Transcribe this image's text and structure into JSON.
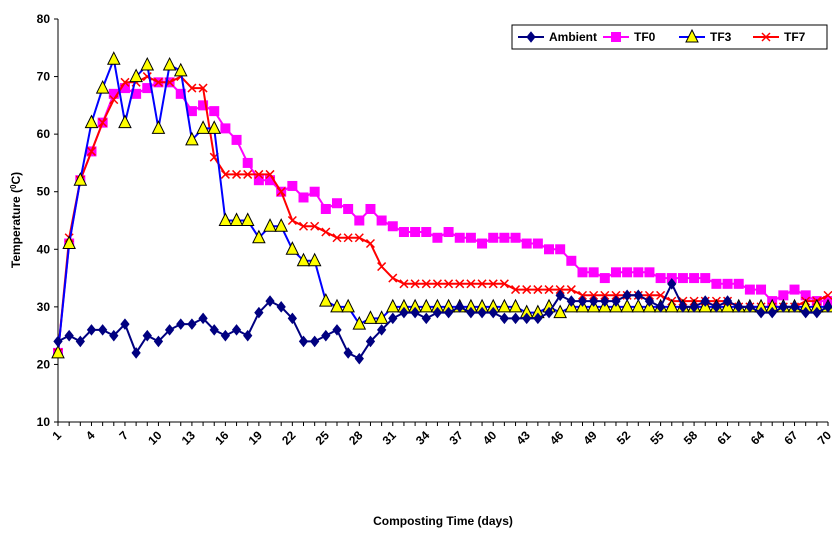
{
  "chart_data": {
    "type": "line",
    "xlabel": "Composting Time (days)",
    "ylabel": "Temperature (",
    "ylabel_sup": "0",
    "ylabel_end": "C)",
    "ylim": [
      10,
      80
    ],
    "yticks": [
      10,
      20,
      30,
      40,
      50,
      60,
      70,
      80
    ],
    "xlim": [
      1,
      70
    ],
    "xticks": [
      1,
      4,
      7,
      10,
      13,
      16,
      19,
      22,
      25,
      28,
      31,
      34,
      37,
      40,
      43,
      46,
      49,
      52,
      55,
      58,
      61,
      64,
      67,
      70
    ],
    "grid": false,
    "legend_position": "top-right",
    "series": [
      {
        "name": "Ambient",
        "color": "#000080",
        "marker": "diamond",
        "x": [
          1,
          2,
          3,
          4,
          5,
          6,
          7,
          8,
          9,
          10,
          11,
          12,
          13,
          14,
          15,
          16,
          17,
          18,
          19,
          20,
          21,
          22,
          23,
          24,
          25,
          26,
          27,
          28,
          29,
          30,
          31,
          32,
          33,
          34,
          35,
          36,
          37,
          38,
          39,
          40,
          41,
          42,
          43,
          44,
          45,
          46,
          47,
          48,
          49,
          50,
          51,
          52,
          53,
          54,
          55,
          56,
          57,
          58,
          59,
          60,
          61,
          62,
          63,
          64,
          65,
          66,
          67,
          68,
          69,
          70
        ],
        "values": [
          24,
          25,
          24,
          26,
          26,
          25,
          27,
          22,
          25,
          24,
          26,
          27,
          27,
          28,
          26,
          25,
          26,
          25,
          29,
          31,
          30,
          28,
          24,
          24,
          25,
          26,
          22,
          21,
          24,
          26,
          28,
          29,
          29,
          28,
          29,
          29,
          30,
          29,
          29,
          29,
          28,
          28,
          28,
          28,
          29,
          32,
          31,
          31,
          31,
          31,
          31,
          32,
          32,
          31,
          30,
          34,
          30,
          30,
          31,
          30,
          31,
          30,
          30,
          29,
          29,
          30,
          30,
          29,
          29,
          30
        ]
      },
      {
        "name": "TF0",
        "color": "#FF00FF",
        "marker": "square",
        "x": [
          1,
          2,
          3,
          4,
          5,
          6,
          7,
          8,
          9,
          10,
          11,
          12,
          13,
          14,
          15,
          16,
          17,
          18,
          19,
          20,
          21,
          22,
          23,
          24,
          25,
          26,
          27,
          28,
          29,
          30,
          31,
          32,
          33,
          34,
          35,
          36,
          37,
          38,
          39,
          40,
          41,
          42,
          43,
          44,
          45,
          46,
          47,
          48,
          49,
          50,
          51,
          52,
          53,
          54,
          55,
          56,
          57,
          58,
          59,
          60,
          61,
          62,
          63,
          64,
          65,
          66,
          67,
          68,
          69,
          70
        ],
        "values": [
          22,
          41,
          52,
          57,
          62,
          67,
          68,
          67,
          68,
          69,
          69,
          67,
          64,
          65,
          64,
          61,
          59,
          55,
          52,
          52,
          50,
          51,
          49,
          50,
          47,
          48,
          47,
          45,
          47,
          45,
          44,
          43,
          43,
          43,
          42,
          43,
          42,
          42,
          41,
          42,
          42,
          42,
          41,
          41,
          40,
          40,
          38,
          36,
          36,
          35,
          36,
          36,
          36,
          36,
          35,
          35,
          35,
          35,
          35,
          34,
          34,
          34,
          33,
          33,
          31,
          32,
          33,
          32,
          31,
          31
        ]
      },
      {
        "name": "TF3",
        "color": "#0000FF",
        "marker": "triangle",
        "x": [
          1,
          2,
          3,
          4,
          5,
          6,
          7,
          8,
          9,
          10,
          11,
          12,
          13,
          14,
          15,
          16,
          17,
          18,
          19,
          20,
          21,
          22,
          23,
          24,
          25,
          26,
          27,
          28,
          29,
          30,
          31,
          32,
          33,
          34,
          35,
          36,
          37,
          38,
          39,
          40,
          41,
          42,
          43,
          44,
          45,
          46,
          47,
          48,
          49,
          50,
          51,
          52,
          53,
          54,
          55,
          56,
          57,
          58,
          59,
          60,
          61,
          62,
          63,
          64,
          65,
          66,
          67,
          68,
          69,
          70
        ],
        "values": [
          22,
          41,
          52,
          62,
          68,
          73,
          62,
          70,
          72,
          61,
          72,
          71,
          59,
          61,
          61,
          45,
          45,
          45,
          42,
          44,
          44,
          40,
          38,
          38,
          31,
          30,
          30,
          27,
          28,
          28,
          30,
          30,
          30,
          30,
          30,
          30,
          30,
          30,
          30,
          30,
          30,
          30,
          29,
          29,
          30,
          29,
          30,
          30,
          30,
          30,
          30,
          30,
          30,
          30,
          30,
          30,
          30,
          30,
          30,
          30,
          30,
          30,
          30,
          30,
          30,
          30,
          30,
          30,
          30,
          30
        ]
      },
      {
        "name": "TF7",
        "color": "#FF0000",
        "marker": "x",
        "x": [
          1,
          2,
          3,
          4,
          5,
          6,
          7,
          8,
          9,
          10,
          11,
          12,
          13,
          14,
          15,
          16,
          17,
          18,
          19,
          20,
          21,
          22,
          23,
          24,
          25,
          26,
          27,
          28,
          29,
          30,
          31,
          32,
          33,
          34,
          35,
          36,
          37,
          38,
          39,
          40,
          41,
          42,
          43,
          44,
          45,
          46,
          47,
          48,
          49,
          50,
          51,
          52,
          53,
          54,
          55,
          56,
          57,
          58,
          59,
          60,
          61,
          62,
          63,
          64,
          65,
          66,
          67,
          68,
          69,
          70
        ],
        "values": [
          22,
          42,
          52,
          57,
          62,
          66,
          69,
          69,
          70,
          69,
          69,
          70,
          68,
          68,
          56,
          53,
          53,
          53,
          53,
          53,
          50,
          45,
          44,
          44,
          43,
          42,
          42,
          42,
          41,
          37,
          35,
          34,
          34,
          34,
          34,
          34,
          34,
          34,
          34,
          34,
          34,
          33,
          33,
          33,
          33,
          33,
          33,
          32,
          32,
          32,
          32,
          32,
          32,
          32,
          32,
          31,
          31,
          31,
          31,
          31,
          31,
          30,
          30,
          30,
          30,
          30,
          30,
          31,
          31,
          32
        ]
      }
    ]
  }
}
